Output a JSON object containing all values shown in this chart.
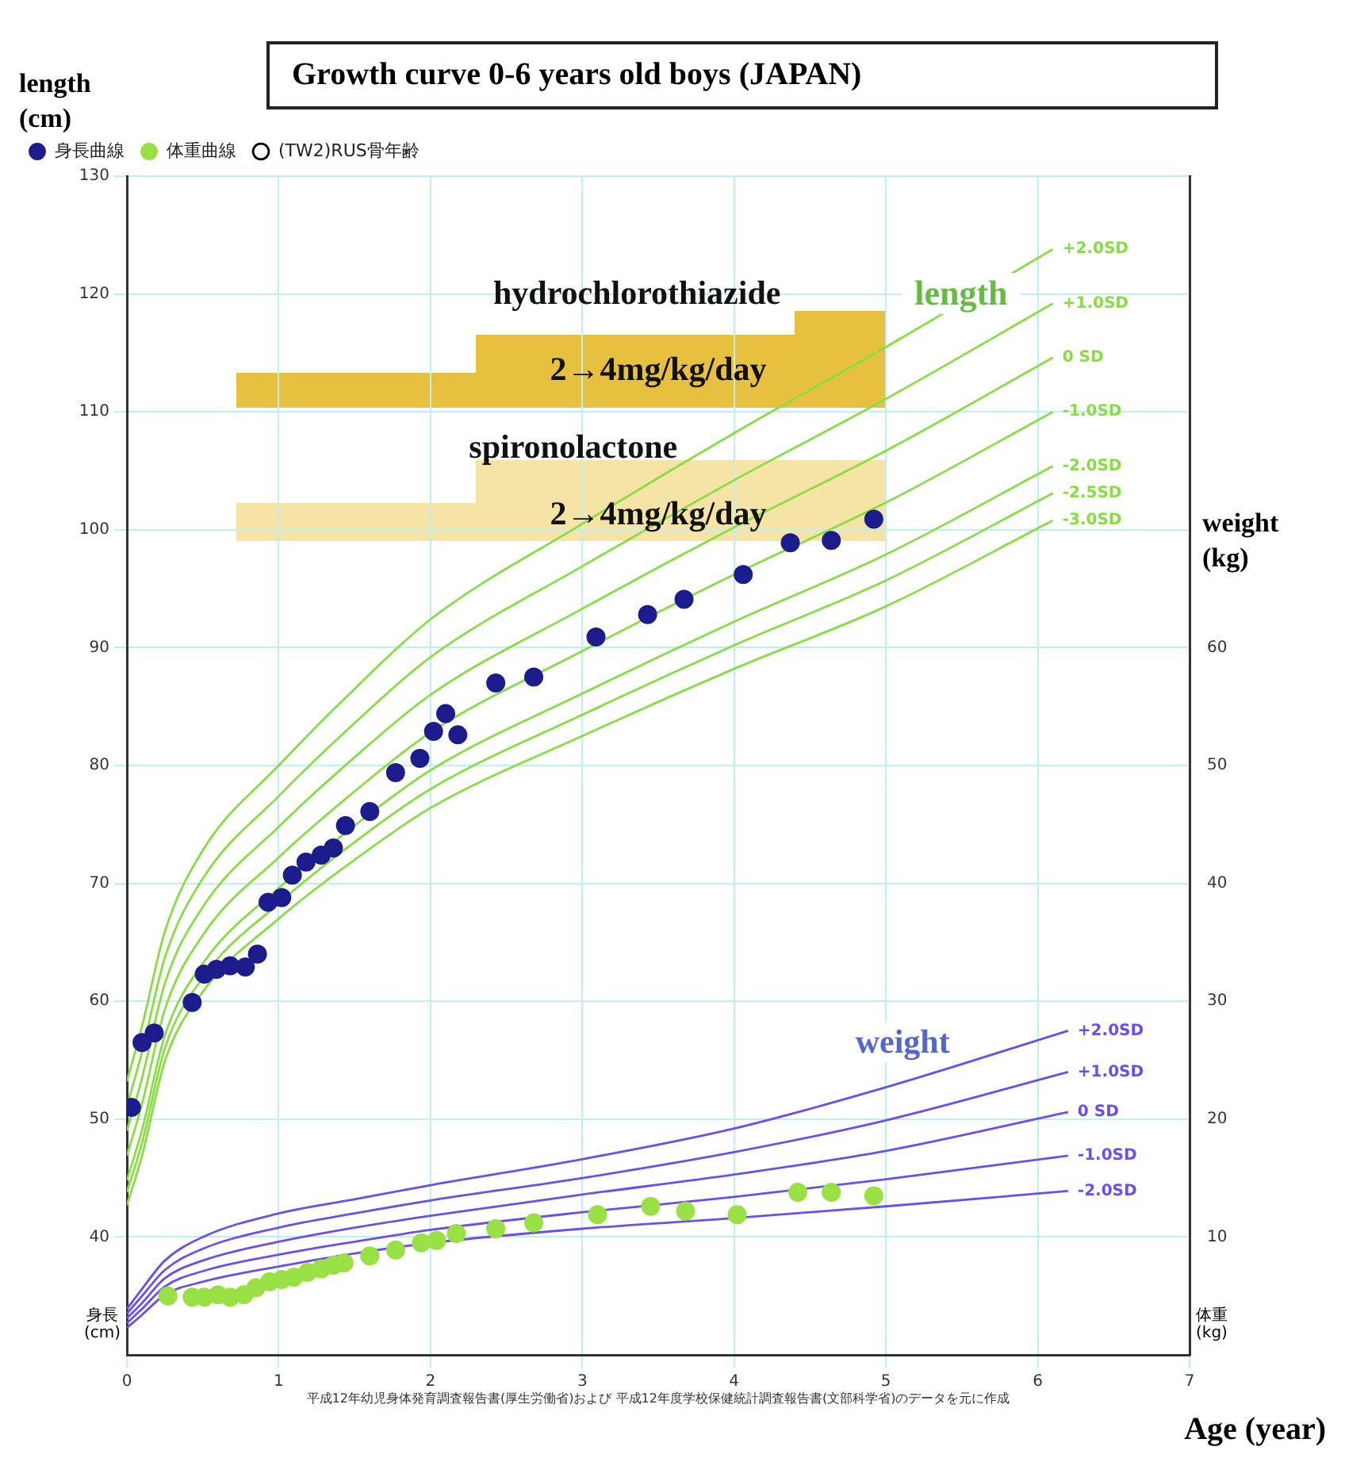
{
  "chart_data": {
    "type": "line",
    "title": "Growth curve 0-6 years old boys (JAPAN)",
    "xlabel": "Age (year)",
    "ylabel": "length\n(cm)",
    "y2label": "weight\n(kg)",
    "xlim": [
      0,
      7
    ],
    "xticks": [
      0,
      1,
      2,
      3,
      4,
      5,
      6,
      7
    ],
    "ylim": [
      30,
      130
    ],
    "yticks": [
      40,
      50,
      60,
      70,
      80,
      90,
      100,
      110,
      120,
      130
    ],
    "y2lim": [
      0,
      100
    ],
    "y2ticks": [
      10,
      20,
      30,
      40,
      50,
      60
    ],
    "grid": true,
    "legend": "top left",
    "annotations": [
      "hydrochlorothiazide",
      "2→4mg/kg/day",
      "spironolactone",
      "2→4mg/kg/day",
      "length",
      "weight",
      "身長\n(cm)",
      "体重\n(kg)",
      "平成12年幼児身体発育調査報告書(厚生労働省)および 平成12年度学校保健統計調査報告書(文部科学省)のデータを元に作成"
    ],
    "series": [
      {
        "name": "身長曲線",
        "type": "scatter",
        "marker": "circle",
        "color": "#1c1c8c",
        "x": [
          0.03,
          0.1,
          0.18,
          0.43,
          0.51,
          0.59,
          0.68,
          0.78,
          0.86,
          0.93,
          1.02,
          1.09,
          1.18,
          1.28,
          1.36,
          1.44,
          1.6,
          1.77,
          1.93,
          2.02,
          2.1,
          2.18,
          2.43,
          2.68,
          3.09,
          3.43,
          3.67,
          4.06,
          4.37,
          4.64,
          4.92
        ],
        "values": [
          51,
          56.5,
          57.3,
          59.9,
          62.3,
          62.7,
          63,
          62.9,
          64,
          68.4,
          68.8,
          70.7,
          71.8,
          72.4,
          73,
          74.9,
          76.1,
          79.4,
          80.6,
          82.9,
          84.4,
          82.6,
          87,
          87.5,
          90.9,
          92.8,
          94.1,
          96.2,
          98.9,
          99.1,
          100.9
        ]
      },
      {
        "name": "体重曲線",
        "type": "scatter",
        "marker": "circle",
        "axis": "y2",
        "color": "#99e044",
        "x": [
          0.27,
          0.43,
          0.51,
          0.6,
          0.68,
          0.77,
          0.85,
          0.94,
          1.02,
          1.1,
          1.19,
          1.28,
          1.36,
          1.43,
          1.6,
          1.77,
          1.94,
          2.04,
          2.17,
          2.43,
          2.68,
          3.1,
          3.45,
          3.68,
          4.02,
          4.42,
          4.64,
          4.92
        ],
        "values": [
          5,
          4.9,
          4.9,
          5.1,
          4.9,
          5.1,
          5.7,
          6.2,
          6.4,
          6.6,
          7,
          7.3,
          7.6,
          7.8,
          8.4,
          8.9,
          9.5,
          9.7,
          10.3,
          10.7,
          11.2,
          11.9,
          12.6,
          12.2,
          11.9,
          13.8,
          13.8,
          13.5
        ]
      },
      {
        "name": "(TW2)RUS骨年齢",
        "type": "line",
        "marker": "circle",
        "color": "#000000"
      },
      {
        "name": "+2.0SD",
        "type": "line",
        "marker": "none",
        "color": "#88dd44",
        "x": [
          0,
          0.1,
          0.25,
          0.5,
          1,
          1.5,
          2,
          3,
          4,
          5,
          6.1
        ],
        "values": [
          53.2,
          57.9,
          65.9,
          72.8,
          80,
          86.5,
          92.4,
          100.5,
          108.2,
          115.5,
          123.8
        ]
      },
      {
        "name": "+1.0SD",
        "type": "line",
        "marker": "none",
        "color": "#88dd44",
        "x": [
          0,
          0.1,
          0.25,
          0.5,
          1,
          1.5,
          2,
          3,
          4,
          5,
          6.1
        ],
        "values": [
          51.1,
          55.7,
          63.7,
          70.4,
          77.4,
          83.6,
          89.2,
          96.9,
          104.2,
          111.1,
          119.2
        ]
      },
      {
        "name": "0 SD",
        "type": "line",
        "marker": "none",
        "color": "#88dd44",
        "x": [
          0,
          0.1,
          0.25,
          0.5,
          1,
          1.5,
          2,
          3,
          4,
          5,
          6.1
        ],
        "values": [
          49,
          53.5,
          61.5,
          68,
          74.8,
          80.7,
          86,
          93.3,
          100.2,
          106.7,
          114.6
        ]
      },
      {
        "name": "-1.0SD",
        "type": "line",
        "marker": "none",
        "color": "#88dd44",
        "x": [
          0,
          0.1,
          0.25,
          0.5,
          1,
          1.5,
          2,
          3,
          4,
          5,
          6.1
        ],
        "values": [
          46.9,
          51.3,
          59.3,
          65.6,
          72.2,
          77.8,
          82.8,
          89.7,
          96.2,
          102.3,
          110
        ]
      },
      {
        "name": "-2.0SD",
        "type": "line",
        "marker": "none",
        "color": "#88dd44",
        "x": [
          0,
          0.1,
          0.25,
          0.5,
          1,
          1.5,
          2,
          3,
          4,
          5,
          6.1
        ],
        "values": [
          44.8,
          49.1,
          57.1,
          63.2,
          69.6,
          74.9,
          79.6,
          86.1,
          92.2,
          97.9,
          105.4
        ]
      },
      {
        "name": "-2.5SD",
        "type": "line",
        "marker": "none",
        "color": "#88dd44",
        "x": [
          0,
          0.1,
          0.25,
          0.5,
          1,
          1.5,
          2,
          3,
          4,
          5,
          6.1
        ],
        "values": [
          43.8,
          48,
          56,
          62,
          68.3,
          73.5,
          78,
          84.3,
          90.2,
          95.7,
          103.1
        ]
      },
      {
        "name": "-3.0SD",
        "type": "line",
        "marker": "none",
        "color": "#88dd44",
        "x": [
          0,
          0.1,
          0.25,
          0.5,
          1,
          1.5,
          2,
          3,
          4,
          5,
          6.1
        ],
        "values": [
          42.7,
          46.9,
          54.9,
          60.8,
          67,
          72,
          76.4,
          82.5,
          88.2,
          93.5,
          100.8
        ]
      },
      {
        "name": "+2.0SD",
        "type": "line",
        "marker": "none",
        "axis": "y2",
        "color": "#6a4ff0",
        "x": [
          0,
          0.1,
          0.25,
          0.5,
          1,
          1.5,
          2,
          3,
          4,
          5,
          6.2
        ],
        "values": [
          3.9,
          5.6,
          8,
          10,
          12,
          13.2,
          14.4,
          16.6,
          19.2,
          22.7,
          27.5
        ]
      },
      {
        "name": "+1.0SD",
        "type": "line",
        "marker": "none",
        "axis": "y2",
        "color": "#6a4ff0",
        "x": [
          0,
          0.1,
          0.25,
          0.5,
          1,
          1.5,
          2,
          3,
          4,
          5,
          6.2
        ],
        "values": [
          3.5,
          5,
          7.2,
          9,
          10.8,
          12,
          13.1,
          15,
          17.2,
          19.9,
          24
        ]
      },
      {
        "name": "0 SD",
        "type": "line",
        "marker": "none",
        "axis": "y2",
        "color": "#6a4ff0",
        "x": [
          0,
          0.1,
          0.25,
          0.5,
          1,
          1.5,
          2,
          3,
          4,
          5,
          6.2
        ],
        "values": [
          3.1,
          4.4,
          6.5,
          8,
          9.6,
          10.8,
          11.8,
          13.6,
          15.3,
          17.3,
          20.6
        ]
      },
      {
        "name": "-1.0SD",
        "type": "line",
        "marker": "none",
        "axis": "y2",
        "color": "#6a4ff0",
        "x": [
          0,
          0.1,
          0.25,
          0.5,
          1,
          1.5,
          2,
          3,
          4,
          5,
          6.2
        ],
        "values": [
          2.7,
          3.9,
          5.8,
          7.1,
          8.5,
          9.6,
          10.6,
          12.1,
          13.4,
          14.9,
          16.9
        ]
      },
      {
        "name": "-2.0SD",
        "type": "line",
        "marker": "none",
        "axis": "y2",
        "color": "#6a4ff0",
        "x": [
          0,
          0.1,
          0.25,
          0.5,
          1,
          1.5,
          2,
          3,
          4,
          5,
          6.2
        ],
        "values": [
          2.3,
          3.4,
          5.1,
          6.2,
          7.5,
          8.6,
          9.5,
          10.7,
          11.6,
          12.6,
          13.9
        ]
      }
    ]
  }
}
